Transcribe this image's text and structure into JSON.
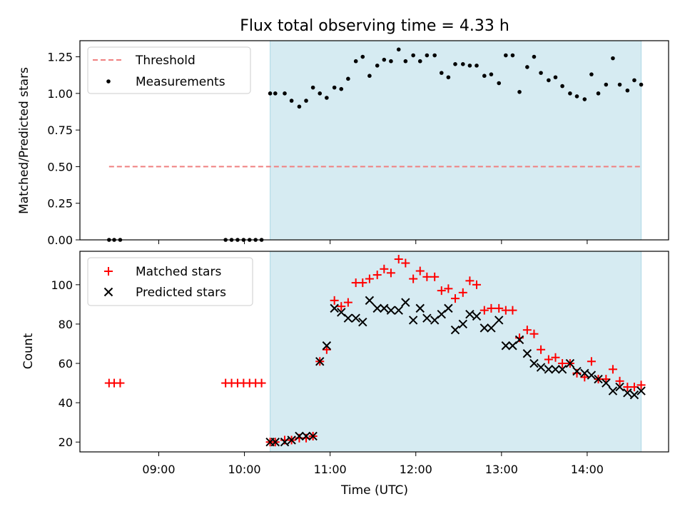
{
  "title": "Flux total observing time = 4.33 h",
  "colors": {
    "shade": "#add8e6",
    "threshold": "#f08080",
    "matched": "#ff0000",
    "predicted": "#000000",
    "measure": "#000000"
  },
  "chart_data": [
    {
      "type": "scatter",
      "ylabel": "Matched/Predicted stars",
      "xlim": [
        8.08,
        14.95
      ],
      "ylim": [
        0,
        1.36
      ],
      "yticks": [
        0.0,
        0.25,
        0.5,
        0.75,
        1.0,
        1.25
      ],
      "yticklabels": [
        "0.00",
        "0.25",
        "0.50",
        "0.75",
        "1.00",
        "1.25"
      ],
      "shaded_span": [
        10.3,
        14.63
      ],
      "threshold": {
        "label": "Threshold",
        "y": 0.5,
        "x_range": [
          8.42,
          14.63
        ]
      },
      "measurements": {
        "label": "Measurements",
        "x": [
          8.42,
          8.48,
          8.55,
          9.78,
          9.85,
          9.92,
          9.99,
          10.06,
          10.13,
          10.2,
          10.3,
          10.36,
          10.47,
          10.55,
          10.64,
          10.72,
          10.8,
          10.88,
          10.96,
          11.05,
          11.13,
          11.21,
          11.3,
          11.38,
          11.46,
          11.55,
          11.63,
          11.71,
          11.8,
          11.88,
          11.97,
          12.05,
          12.13,
          12.22,
          12.3,
          12.38,
          12.46,
          12.55,
          12.63,
          12.71,
          12.8,
          12.88,
          12.97,
          13.05,
          13.13,
          13.21,
          13.3,
          13.38,
          13.46,
          13.55,
          13.63,
          13.71,
          13.8,
          13.88,
          13.97,
          14.05,
          14.13,
          14.22,
          14.3,
          14.38,
          14.47,
          14.55,
          14.63
        ],
        "y": [
          0,
          0,
          0,
          0,
          0,
          0,
          0,
          0,
          0,
          0,
          1.0,
          1.0,
          1.0,
          0.95,
          0.91,
          0.95,
          1.04,
          1.0,
          0.97,
          1.04,
          1.03,
          1.1,
          1.22,
          1.25,
          1.12,
          1.19,
          1.23,
          1.22,
          1.3,
          1.22,
          1.26,
          1.22,
          1.26,
          1.26,
          1.14,
          1.11,
          1.2,
          1.2,
          1.19,
          1.19,
          1.12,
          1.13,
          1.07,
          1.26,
          1.26,
          1.01,
          1.18,
          1.25,
          1.14,
          1.09,
          1.11,
          1.05,
          1.0,
          0.98,
          0.96,
          1.13,
          1.0,
          1.06,
          1.24,
          1.06,
          1.02,
          1.09,
          1.06
        ]
      }
    },
    {
      "type": "scatter",
      "xlabel": "Time (UTC)",
      "ylabel": "Count",
      "xlim": [
        8.08,
        14.95
      ],
      "ylim": [
        15,
        117
      ],
      "yticks": [
        20,
        40,
        60,
        80,
        100
      ],
      "yticklabels": [
        "20",
        "40",
        "60",
        "80",
        "100"
      ],
      "xticks": [
        9,
        10,
        11,
        12,
        13,
        14
      ],
      "xticklabels": [
        "09:00",
        "10:00",
        "11:00",
        "12:00",
        "13:00",
        "14:00"
      ],
      "shaded_span": [
        10.3,
        14.63
      ],
      "series": [
        {
          "name": "Matched stars",
          "marker": "+",
          "x": [
            8.42,
            8.48,
            8.55,
            9.78,
            9.85,
            9.92,
            9.99,
            10.06,
            10.13,
            10.2,
            10.3,
            10.36,
            10.47,
            10.55,
            10.64,
            10.72,
            10.8,
            10.88,
            10.96,
            11.05,
            11.13,
            11.21,
            11.3,
            11.38,
            11.46,
            11.55,
            11.63,
            11.71,
            11.8,
            11.88,
            11.97,
            12.05,
            12.13,
            12.22,
            12.3,
            12.38,
            12.46,
            12.55,
            12.63,
            12.71,
            12.8,
            12.88,
            12.97,
            13.05,
            13.13,
            13.21,
            13.3,
            13.38,
            13.46,
            13.55,
            13.63,
            13.71,
            13.8,
            13.88,
            13.97,
            14.05,
            14.13,
            14.22,
            14.3,
            14.38,
            14.47,
            14.55,
            14.63
          ],
          "values": [
            50,
            50,
            50,
            50,
            50,
            50,
            50,
            50,
            50,
            50,
            20,
            20,
            21,
            21,
            22,
            22,
            23,
            61,
            67,
            92,
            89,
            91,
            101,
            101,
            103,
            105,
            108,
            106,
            113,
            111,
            103,
            107,
            104,
            104,
            97,
            98,
            93,
            96,
            102,
            100,
            87,
            88,
            88,
            87,
            87,
            73,
            77,
            75,
            67,
            62,
            63,
            60,
            60,
            55,
            53,
            61,
            52,
            52,
            57,
            51,
            48,
            48,
            49
          ]
        },
        {
          "name": "Predicted stars",
          "marker": "x",
          "x": [
            10.3,
            10.36,
            10.47,
            10.55,
            10.64,
            10.72,
            10.8,
            10.88,
            10.96,
            11.05,
            11.13,
            11.21,
            11.3,
            11.38,
            11.46,
            11.55,
            11.63,
            11.71,
            11.8,
            11.88,
            11.97,
            12.05,
            12.13,
            12.22,
            12.3,
            12.38,
            12.46,
            12.55,
            12.63,
            12.71,
            12.8,
            12.88,
            12.97,
            13.05,
            13.13,
            13.21,
            13.3,
            13.38,
            13.46,
            13.55,
            13.63,
            13.71,
            13.8,
            13.88,
            13.97,
            14.05,
            14.13,
            14.22,
            14.3,
            14.38,
            14.47,
            14.55,
            14.63
          ],
          "values": [
            20,
            20,
            20,
            21,
            23,
            23,
            23,
            61,
            69,
            88,
            86,
            83,
            83,
            81,
            92,
            88,
            88,
            87,
            87,
            91,
            82,
            88,
            83,
            82,
            85,
            88,
            77,
            80,
            85,
            84,
            78,
            78,
            82,
            69,
            69,
            72,
            65,
            60,
            58,
            57,
            57,
            57,
            60,
            56,
            55,
            54,
            52,
            50,
            46,
            48,
            45,
            44,
            46
          ]
        }
      ]
    }
  ]
}
